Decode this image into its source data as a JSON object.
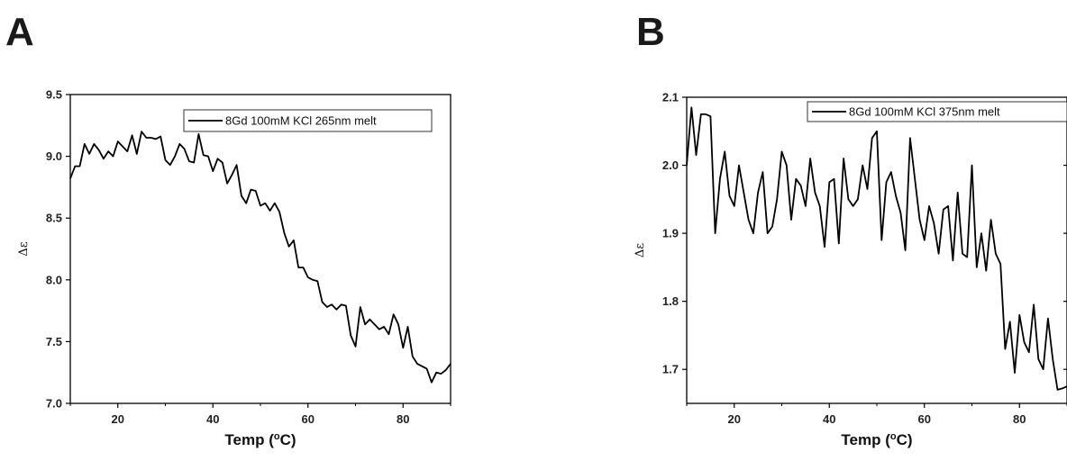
{
  "chart_data": [
    {
      "panel": "A",
      "type": "line",
      "xlabel": "Temp (oC)",
      "ylabel": "Δε",
      "xlim": [
        10,
        90
      ],
      "ylim": [
        7.0,
        9.5
      ],
      "xticks": [
        20,
        40,
        60,
        80
      ],
      "yticks": [
        7.0,
        7.5,
        8.0,
        8.5,
        9.0,
        9.5
      ],
      "ytick_labels": [
        "7.0",
        "7.5",
        "8.0",
        "8.5",
        "9.0",
        "9.5"
      ],
      "legend": "top-right",
      "grid": false,
      "series": [
        {
          "name": "8Gd 100mM KCl 265nm melt",
          "x": [
            10,
            11,
            12,
            13,
            14,
            15,
            16,
            17,
            18,
            19,
            20,
            21,
            22,
            23,
            24,
            25,
            26,
            27,
            28,
            29,
            30,
            31,
            32,
            33,
            34,
            35,
            36,
            37,
            38,
            39,
            40,
            41,
            42,
            43,
            44,
            45,
            46,
            47,
            48,
            49,
            50,
            51,
            52,
            53,
            54,
            55,
            56,
            57,
            58,
            59,
            60,
            61,
            62,
            63,
            64,
            65,
            66,
            67,
            68,
            69,
            70,
            71,
            72,
            73,
            74,
            75,
            76,
            77,
            78,
            79,
            80,
            81,
            82,
            83,
            84,
            85,
            86,
            87,
            88,
            89,
            90
          ],
          "y": [
            8.82,
            8.92,
            8.92,
            9.1,
            9.02,
            9.1,
            9.05,
            8.98,
            9.04,
            9.0,
            9.12,
            9.08,
            9.04,
            9.17,
            9.02,
            9.2,
            9.15,
            9.15,
            9.14,
            9.16,
            8.97,
            8.93,
            9.0,
            9.1,
            9.06,
            8.96,
            8.95,
            9.18,
            9.01,
            9.0,
            8.88,
            8.98,
            8.95,
            8.78,
            8.85,
            8.93,
            8.68,
            8.62,
            8.73,
            8.72,
            8.6,
            8.62,
            8.56,
            8.62,
            8.55,
            8.38,
            8.27,
            8.32,
            8.1,
            8.1,
            8.02,
            8.0,
            7.99,
            7.82,
            7.78,
            7.8,
            7.76,
            7.8,
            7.79,
            7.55,
            7.46,
            7.78,
            7.64,
            7.68,
            7.64,
            7.6,
            7.62,
            7.56,
            7.72,
            7.64,
            7.45,
            7.62,
            7.38,
            7.32,
            7.3,
            7.28,
            7.17,
            7.25,
            7.24,
            7.27,
            7.32
          ]
        }
      ]
    },
    {
      "panel": "B",
      "type": "line",
      "xlabel": "Temp (oC)",
      "ylabel": "Δε",
      "xlim": [
        10,
        90
      ],
      "ylim": [
        1.65,
        2.1
      ],
      "xticks": [
        20,
        40,
        60,
        80
      ],
      "yticks": [
        1.7,
        1.8,
        1.9,
        2.0,
        2.1
      ],
      "ytick_labels": [
        "1.7",
        "1.8",
        "1.9",
        "2.0",
        "2.1"
      ],
      "legend": "top-right",
      "grid": false,
      "series": [
        {
          "name": "8Gd 100mM KCl 375nm melt",
          "x": [
            10,
            11,
            12,
            13,
            14,
            15,
            16,
            17,
            18,
            19,
            20,
            21,
            22,
            23,
            24,
            25,
            26,
            27,
            28,
            29,
            30,
            31,
            32,
            33,
            34,
            35,
            36,
            37,
            38,
            39,
            40,
            41,
            42,
            43,
            44,
            45,
            46,
            47,
            48,
            49,
            50,
            51,
            52,
            53,
            54,
            55,
            56,
            57,
            58,
            59,
            60,
            61,
            62,
            63,
            64,
            65,
            66,
            67,
            68,
            69,
            70,
            71,
            72,
            73,
            74,
            75,
            76,
            77,
            78,
            79,
            80,
            81,
            82,
            83,
            84,
            85,
            86,
            87,
            88,
            89,
            90
          ],
          "y": [
            2.0,
            2.085,
            2.015,
            2.075,
            2.075,
            2.072,
            1.9,
            1.98,
            2.02,
            1.955,
            1.94,
            2.0,
            1.96,
            1.92,
            1.9,
            1.96,
            1.99,
            1.9,
            1.91,
            1.95,
            2.02,
            2.0,
            1.92,
            1.98,
            1.97,
            1.94,
            2.01,
            1.96,
            1.94,
            1.88,
            1.975,
            1.98,
            1.885,
            2.01,
            1.95,
            1.94,
            1.95,
            2.0,
            1.965,
            2.04,
            2.05,
            1.89,
            1.975,
            1.99,
            1.955,
            1.93,
            1.875,
            2.04,
            1.98,
            1.92,
            1.89,
            1.94,
            1.915,
            1.87,
            1.935,
            1.94,
            1.86,
            1.96,
            1.87,
            1.865,
            2.0,
            1.85,
            1.9,
            1.845,
            1.92,
            1.87,
            1.855,
            1.73,
            1.77,
            1.695,
            1.78,
            1.74,
            1.725,
            1.795,
            1.715,
            1.7,
            1.775,
            1.715,
            1.67,
            1.672,
            1.675
          ]
        }
      ]
    }
  ]
}
